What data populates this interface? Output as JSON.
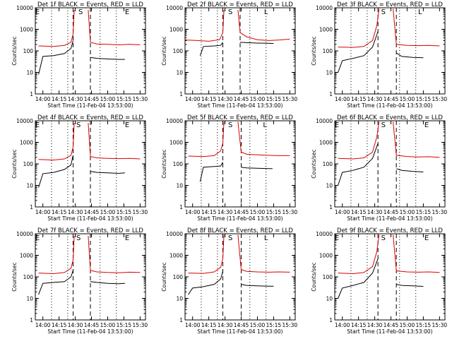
{
  "ylabel": "Counts/sec",
  "xlabel": "Start Time (11-Feb-04 13:53:00)",
  "x_ticks": [
    "14:00",
    "14:15",
    "14:30",
    "14:45",
    "15:00",
    "15:15",
    "15:30"
  ],
  "y_ticks": [
    "1",
    "10",
    "100",
    "1000",
    "10000"
  ],
  "markers": {
    "E": "E",
    "S": "S",
    "L": "L"
  },
  "colors": {
    "events": "#000000",
    "lld": "#dd0000"
  },
  "chart_data": [
    {
      "type": "line",
      "title": "Det 1f BLACK = Events, RED = LLD",
      "xlim": [
        "13:53",
        "15:35"
      ],
      "ylim": [
        1,
        10000
      ],
      "yscale": "log",
      "markers": {
        "E": [
          "13:55",
          "15:18"
        ],
        "S": "14:35",
        "dashed": [
          "14:28",
          "14:44"
        ],
        "dotted": [
          "14:08",
          "14:23",
          "14:53",
          "15:08"
        ]
      },
      "series": [
        {
          "name": "Events",
          "x": [
            "13:56",
            "14:00",
            "14:10",
            "14:20",
            "14:26",
            "14:28"
          ],
          "values": [
            8,
            55,
            60,
            75,
            130,
            300
          ]
        },
        {
          "name": "Events",
          "x": [
            "14:44",
            "14:50",
            "15:00",
            "15:10",
            "15:16"
          ],
          "values": [
            50,
            45,
            42,
            40,
            40
          ]
        },
        {
          "name": "LLD",
          "x": [
            "13:56",
            "14:10",
            "14:20",
            "14:26",
            "14:28",
            "14:29"
          ],
          "values": [
            170,
            160,
            180,
            250,
            600,
            8000
          ]
        },
        {
          "name": "LLD",
          "x": [
            "14:42",
            "14:44",
            "14:50",
            "15:00",
            "15:10",
            "15:20",
            "15:30"
          ],
          "values": [
            8000,
            250,
            210,
            200,
            190,
            200,
            190
          ]
        }
      ]
    },
    {
      "type": "line",
      "title": "Det 2f BLACK = Events, RED = LLD",
      "xlim": [
        "13:53",
        "15:35"
      ],
      "ylim": [
        1,
        10000
      ],
      "yscale": "log",
      "markers": {
        "E": null,
        "S": "14:35",
        "L": "15:08",
        "dashed": [
          "14:28",
          "14:44"
        ],
        "dotted": [
          "14:08",
          "14:23",
          "14:53",
          "15:08"
        ]
      },
      "series": [
        {
          "name": "Events",
          "x": [
            "14:07",
            "14:10",
            "14:20",
            "14:26",
            "14:28"
          ],
          "values": [
            60,
            160,
            170,
            180,
            250
          ]
        },
        {
          "name": "Events",
          "x": [
            "14:44",
            "14:50",
            "15:00",
            "15:10",
            "15:15"
          ],
          "values": [
            250,
            240,
            230,
            225,
            220
          ]
        },
        {
          "name": "LLD",
          "x": [
            "13:53",
            "14:05",
            "14:15",
            "14:25",
            "14:28",
            "14:29"
          ],
          "values": [
            320,
            300,
            280,
            330,
            700,
            8000
          ]
        },
        {
          "name": "LLD",
          "x": [
            "14:42",
            "14:44",
            "14:50",
            "15:00",
            "15:10",
            "15:20",
            "15:30"
          ],
          "values": [
            8000,
            700,
            450,
            330,
            300,
            320,
            350
          ]
        }
      ]
    },
    {
      "type": "line",
      "title": "Det 3f BLACK = Events, RED = LLD",
      "xlim": [
        "13:53",
        "15:35"
      ],
      "ylim": [
        1,
        10000
      ],
      "yscale": "log",
      "markers": {
        "E": null,
        "S": "14:38",
        "L": "15:12",
        "dashed": [
          "14:33",
          "14:50"
        ],
        "dotted": [
          "14:08",
          "14:23",
          "14:53",
          "15:08"
        ]
      },
      "series": [
        {
          "name": "Events",
          "x": [
            "13:56",
            "14:00",
            "14:10",
            "14:20",
            "14:28",
            "14:33"
          ],
          "values": [
            10,
            35,
            45,
            60,
            150,
            800
          ]
        },
        {
          "name": "Events",
          "x": [
            "14:50",
            "14:55",
            "15:05",
            "15:15"
          ],
          "values": [
            80,
            55,
            50,
            48
          ]
        },
        {
          "name": "LLD",
          "x": [
            "13:56",
            "14:10",
            "14:20",
            "14:28",
            "14:32",
            "14:34"
          ],
          "values": [
            150,
            145,
            160,
            300,
            1500,
            9000
          ]
        },
        {
          "name": "LLD",
          "x": [
            "14:47",
            "14:50",
            "15:00",
            "15:10",
            "15:20",
            "15:30"
          ],
          "values": [
            9000,
            200,
            180,
            175,
            180,
            170
          ]
        }
      ]
    },
    {
      "type": "line",
      "title": "Det 4f BLACK = Events, RED = LLD",
      "xlim": [
        "13:53",
        "15:35"
      ],
      "ylim": [
        1,
        10000
      ],
      "yscale": "log",
      "markers": {
        "E": [
          "13:55",
          "15:18"
        ],
        "S": "14:33",
        "dashed": [
          "14:28",
          "14:44"
        ],
        "dotted": [
          "14:08",
          "14:23",
          "14:53",
          "15:08"
        ]
      },
      "series": [
        {
          "name": "Events",
          "x": [
            "13:56",
            "14:00",
            "14:10",
            "14:20",
            "14:26",
            "14:28"
          ],
          "values": [
            8,
            35,
            40,
            55,
            90,
            250
          ]
        },
        {
          "name": "Events",
          "x": [
            "14:44",
            "14:50",
            "15:00",
            "15:10",
            "15:16"
          ],
          "values": [
            45,
            40,
            38,
            36,
            38
          ]
        },
        {
          "name": "LLD",
          "x": [
            "13:56",
            "14:10",
            "14:20",
            "14:26",
            "14:28",
            "14:29"
          ],
          "values": [
            160,
            150,
            170,
            250,
            600,
            8000
          ]
        },
        {
          "name": "LLD",
          "x": [
            "14:42",
            "14:44",
            "14:50",
            "15:00",
            "15:10",
            "15:20",
            "15:30"
          ],
          "values": [
            8000,
            220,
            190,
            180,
            175,
            180,
            170
          ]
        }
      ]
    },
    {
      "type": "line",
      "title": "Det 5f BLACK = Events, RED = LLD",
      "xlim": [
        "13:53",
        "15:35"
      ],
      "ylim": [
        1,
        10000
      ],
      "yscale": "log",
      "markers": {
        "E": null,
        "S": "14:35",
        "L": "15:07",
        "dashed": [
          "14:28",
          "14:45"
        ],
        "dotted": [
          "14:08",
          "14:23",
          "14:53",
          "15:08"
        ]
      },
      "series": [
        {
          "name": "Events",
          "x": [
            "14:07",
            "14:10",
            "14:20",
            "14:26",
            "14:28"
          ],
          "values": [
            15,
            70,
            75,
            80,
            120
          ]
        },
        {
          "name": "Events",
          "x": [
            "14:45",
            "14:50",
            "15:00",
            "15:10",
            "15:14"
          ],
          "values": [
            70,
            65,
            62,
            60,
            60
          ]
        },
        {
          "name": "LLD",
          "x": [
            "13:56",
            "14:10",
            "14:20",
            "14:26",
            "14:28",
            "14:29"
          ],
          "values": [
            230,
            220,
            240,
            400,
            900,
            9000
          ]
        },
        {
          "name": "LLD",
          "x": [
            "14:42",
            "14:45",
            "14:50",
            "15:00",
            "15:10",
            "15:20",
            "15:30"
          ],
          "values": [
            9000,
            350,
            280,
            260,
            250,
            240,
            240
          ]
        }
      ]
    },
    {
      "type": "line",
      "title": "Det 6f BLACK = Events, RED = LLD",
      "xlim": [
        "13:53",
        "15:35"
      ],
      "ylim": [
        1,
        10000
      ],
      "yscale": "log",
      "markers": {
        "E": [
          "13:55",
          "15:18"
        ],
        "S": "14:38",
        "dashed": [
          "14:33",
          "14:50"
        ],
        "dotted": [
          "14:08",
          "14:23",
          "14:53",
          "15:08"
        ]
      },
      "series": [
        {
          "name": "Events",
          "x": [
            "13:56",
            "14:00",
            "14:10",
            "14:20",
            "14:28",
            "14:33"
          ],
          "values": [
            10,
            40,
            50,
            70,
            180,
            900
          ]
        },
        {
          "name": "Events",
          "x": [
            "14:50",
            "14:55",
            "15:05",
            "15:15"
          ],
          "values": [
            60,
            50,
            45,
            42
          ]
        },
        {
          "name": "LLD",
          "x": [
            "13:56",
            "14:10",
            "14:20",
            "14:28",
            "14:32",
            "14:34"
          ],
          "values": [
            180,
            170,
            190,
            350,
            1800,
            9000
          ]
        },
        {
          "name": "LLD",
          "x": [
            "14:47",
            "14:50",
            "15:00",
            "15:10",
            "15:20",
            "15:30"
          ],
          "values": [
            9000,
            250,
            220,
            210,
            215,
            200
          ]
        }
      ]
    },
    {
      "type": "line",
      "title": "Det 7f BLACK = Events, RED = LLD",
      "xlim": [
        "13:53",
        "15:35"
      ],
      "ylim": [
        1,
        10000
      ],
      "yscale": "log",
      "markers": {
        "E": [
          "13:55",
          "15:18"
        ],
        "S": "14:33",
        "dashed": [
          "14:28",
          "14:44"
        ],
        "dotted": [
          "14:08",
          "14:23",
          "14:53",
          "15:08"
        ]
      },
      "series": [
        {
          "name": "Events",
          "x": [
            "13:56",
            "14:00",
            "14:10",
            "14:20",
            "14:26",
            "14:28"
          ],
          "values": [
            15,
            50,
            55,
            60,
            100,
            200
          ]
        },
        {
          "name": "Events",
          "x": [
            "14:44",
            "14:50",
            "15:00",
            "15:10",
            "15:16"
          ],
          "values": [
            60,
            55,
            50,
            48,
            50
          ]
        },
        {
          "name": "LLD",
          "x": [
            "13:56",
            "14:10",
            "14:20",
            "14:26",
            "14:28",
            "14:29"
          ],
          "values": [
            150,
            140,
            160,
            250,
            600,
            8000
          ]
        },
        {
          "name": "LLD",
          "x": [
            "14:42",
            "14:44",
            "14:50",
            "15:00",
            "15:10",
            "15:20",
            "15:30"
          ],
          "values": [
            8000,
            200,
            170,
            160,
            155,
            165,
            160
          ]
        }
      ]
    },
    {
      "type": "line",
      "title": "Det 8f BLACK = Events, RED = LLD",
      "xlim": [
        "13:53",
        "15:35"
      ],
      "ylim": [
        1,
        10000
      ],
      "yscale": "log",
      "markers": {
        "E": null,
        "S": "14:35",
        "L": "15:08",
        "dashed": [
          "14:28",
          "14:45"
        ],
        "dotted": [
          "14:08",
          "14:23",
          "14:53",
          "15:08"
        ]
      },
      "series": [
        {
          "name": "Events",
          "x": [
            "13:56",
            "14:00",
            "14:10",
            "14:20",
            "14:26",
            "14:28"
          ],
          "values": [
            15,
            30,
            35,
            45,
            80,
            180
          ]
        },
        {
          "name": "Events",
          "x": [
            "14:45",
            "14:50",
            "15:00",
            "15:10",
            "15:15"
          ],
          "values": [
            45,
            40,
            38,
            37,
            37
          ]
        },
        {
          "name": "LLD",
          "x": [
            "13:56",
            "14:10",
            "14:20",
            "14:26",
            "14:28",
            "14:29"
          ],
          "values": [
            150,
            145,
            170,
            280,
            700,
            9000
          ]
        },
        {
          "name": "LLD",
          "x": [
            "14:42",
            "14:45",
            "14:50",
            "15:00",
            "15:10",
            "15:20",
            "15:30"
          ],
          "values": [
            9000,
            220,
            180,
            170,
            165,
            170,
            165
          ]
        }
      ]
    },
    {
      "type": "line",
      "title": "Det 9f BLACK = Events, RED = LLD",
      "xlim": [
        "13:53",
        "15:35"
      ],
      "ylim": [
        1,
        10000
      ],
      "yscale": "log",
      "markers": {
        "E": [
          "13:55",
          "15:18"
        ],
        "S": "14:38",
        "dashed": [
          "14:33",
          "14:50"
        ],
        "dotted": [
          "14:08",
          "14:23",
          "14:53",
          "15:08"
        ]
      },
      "series": [
        {
          "name": "Events",
          "x": [
            "13:56",
            "14:00",
            "14:10",
            "14:20",
            "14:28",
            "14:33"
          ],
          "values": [
            10,
            30,
            40,
            55,
            150,
            700
          ]
        },
        {
          "name": "Events",
          "x": [
            "14:50",
            "14:55",
            "15:05",
            "15:15"
          ],
          "values": [
            45,
            40,
            38,
            36
          ]
        },
        {
          "name": "LLD",
          "x": [
            "13:56",
            "14:10",
            "14:20",
            "14:28",
            "14:32",
            "14:34"
          ],
          "values": [
            150,
            140,
            160,
            300,
            1500,
            9000
          ]
        },
        {
          "name": "LLD",
          "x": [
            "14:47",
            "14:50",
            "15:00",
            "15:10",
            "15:20",
            "15:30"
          ],
          "values": [
            9000,
            190,
            170,
            165,
            170,
            160
          ]
        }
      ]
    }
  ]
}
